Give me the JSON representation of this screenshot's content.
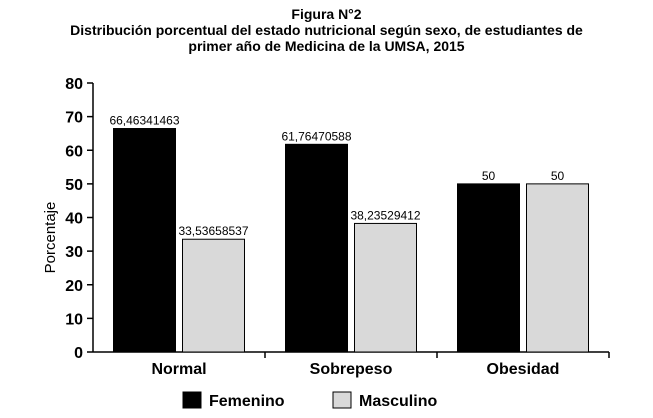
{
  "chart_data": {
    "type": "bar",
    "figure_label": "Figura N°2",
    "title_lines": [
      "Distribución porcentual del estado nutricional según sexo, de estudiantes de",
      "primer año de Medicina de la UMSA, 2015"
    ],
    "ylabel": "Porcentaje",
    "xlabel": "",
    "ylim": [
      0,
      80
    ],
    "yticks": [
      0,
      10,
      20,
      30,
      40,
      50,
      60,
      70,
      80
    ],
    "categories": [
      "Normal",
      "Sobrepeso",
      "Obesidad"
    ],
    "series": [
      {
        "name": "Femenino",
        "color": "#000000",
        "values": [
          66.46341463,
          61.76470588,
          50
        ],
        "labels": [
          "66,46341463",
          "61,76470588",
          "50"
        ]
      },
      {
        "name": "Masculino",
        "color": "#d9d9d9",
        "values": [
          33.53658537,
          38.23529412,
          50
        ],
        "labels": [
          "33,53658537",
          "38,23529412",
          "50"
        ]
      }
    ],
    "grid": false,
    "legend_position": "bottom"
  }
}
